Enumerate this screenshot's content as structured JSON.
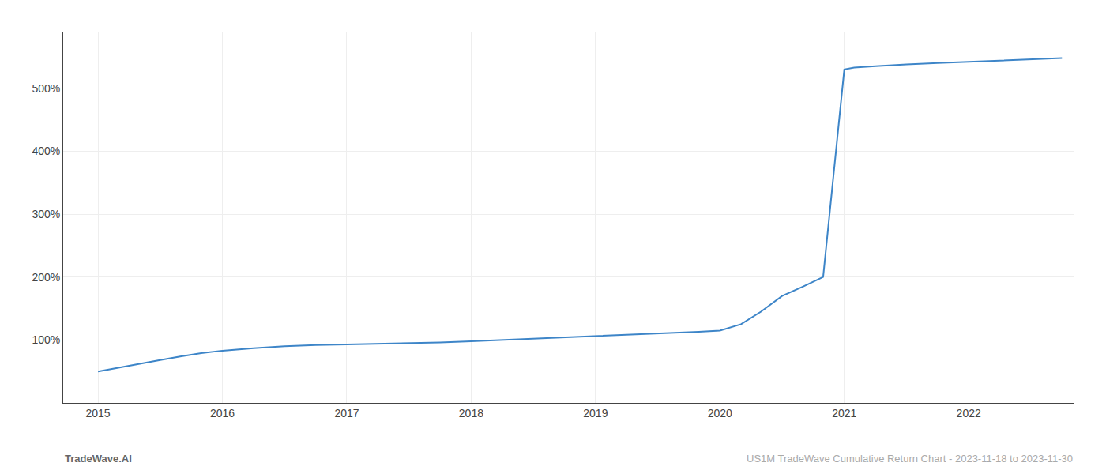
{
  "chart_data": {
    "type": "line",
    "x": [
      2015.0,
      2015.08,
      2015.17,
      2015.33,
      2015.5,
      2015.67,
      2015.83,
      2016.0,
      2016.25,
      2016.5,
      2016.75,
      2017.0,
      2017.25,
      2017.5,
      2017.75,
      2018.0,
      2018.25,
      2018.5,
      2018.75,
      2019.0,
      2019.17,
      2019.33,
      2019.5,
      2019.67,
      2019.83,
      2020.0,
      2020.17,
      2020.33,
      2020.5,
      2020.67,
      2020.83,
      2021.0,
      2021.08,
      2021.25,
      2021.5,
      2021.75,
      2022.0,
      2022.25,
      2022.5,
      2022.75
    ],
    "values": [
      50,
      53,
      56,
      62,
      68,
      74,
      79,
      83,
      87,
      90,
      92,
      93,
      94,
      95,
      96,
      98,
      100,
      102,
      104,
      106,
      108,
      109,
      110,
      112,
      113,
      115,
      125,
      145,
      170,
      185,
      200,
      530,
      533,
      535,
      538,
      540,
      542,
      544,
      546,
      548
    ],
    "color": "#3d85c8",
    "xlim": [
      2014.72,
      2022.85
    ],
    "xticks": [
      2015,
      2016,
      2017,
      2018,
      2019,
      2020,
      2021,
      2022
    ],
    "ylim": [
      0,
      590
    ],
    "yticks": [
      {
        "value": 100,
        "label": "100%"
      },
      {
        "value": 200,
        "label": "200%"
      },
      {
        "value": 300,
        "label": "300%"
      },
      {
        "value": 400,
        "label": "400%"
      },
      {
        "value": 500,
        "label": "500%"
      }
    ],
    "grid": true,
    "annotations": [
      "TradeWave.AI",
      "US1M TradeWave Cumulative Return Chart - 2023-11-18 to 2023-11-30"
    ]
  }
}
